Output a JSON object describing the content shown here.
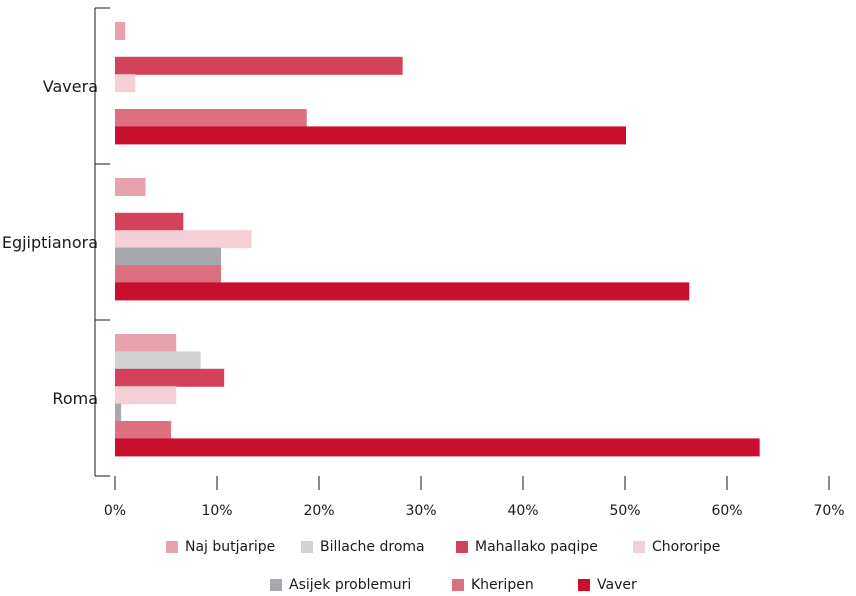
{
  "chart_data": {
    "type": "bar",
    "orientation": "horizontal",
    "categories": [
      "Vavera",
      "Egjiptianora",
      "Roma"
    ],
    "series": [
      {
        "name": "Naj butjaripe",
        "color": "#e8a2ae",
        "values": [
          1,
          3,
          6
        ]
      },
      {
        "name": "Billache droma",
        "color": "#d3d3d3",
        "values": [
          0,
          0,
          8.4
        ]
      },
      {
        "name": "Mahallako paqipe",
        "color": "#d4415a",
        "values": [
          28.2,
          6.7,
          10.7
        ]
      },
      {
        "name": "Chororipe",
        "color": "#f4cfd6",
        "values": [
          2,
          13.4,
          6
        ]
      },
      {
        "name": "Asijek problemuri",
        "color": "#a7a8ac",
        "values": [
          0,
          10.4,
          0.6
        ]
      },
      {
        "name": "Kheripen",
        "color": "#dd7080",
        "values": [
          18.8,
          10.4,
          5.5
        ]
      },
      {
        "name": "Vaver",
        "color": "#c8102e",
        "values": [
          50.1,
          56.3,
          63.2
        ]
      }
    ],
    "xticks": [
      "0%",
      "10%",
      "20%",
      "30%",
      "40%",
      "50%",
      "60%",
      "70%"
    ],
    "xlim": [
      0,
      70
    ],
    "grid": false,
    "legend_position": "bottom"
  }
}
